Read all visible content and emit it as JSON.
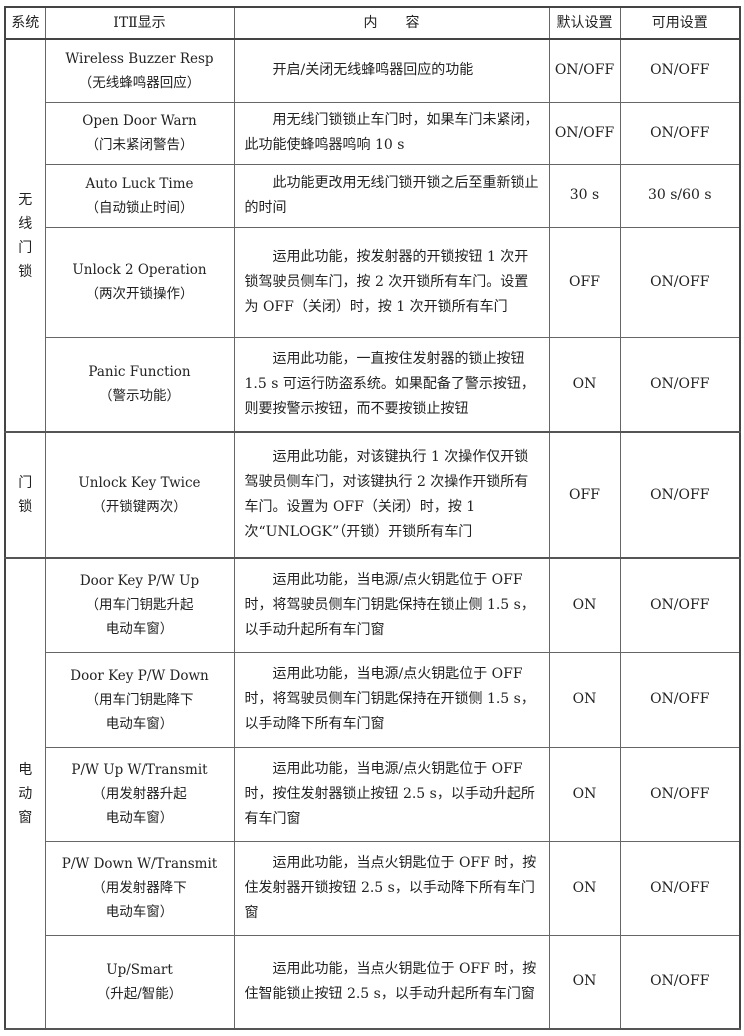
{
  "table": {
    "headers": [
      "系统",
      "ITⅡ显示",
      "内　　容",
      "默认设置",
      "可用设置"
    ],
    "groups": [
      {
        "system": "无\n线\n门\n锁",
        "rows": [
          {
            "name": "Wireless Buzzer Resp",
            "name_cn": "（无线蜂鸣器回应）",
            "content": "开启/关闭无线蜂鸣器回应的功能",
            "default": "ON/OFF",
            "available": "ON/OFF"
          },
          {
            "name": "Open Door Warn",
            "name_cn": "（门未紧闭警告）",
            "content": "用无线门锁锁止车门时，如果车门未紧闭，此功能使蜂鸣器鸣响 10 s",
            "default": "ON/OFF",
            "available": "ON/OFF"
          },
          {
            "name": "Auto Luck Time",
            "name_cn": "（自动锁止时间）",
            "content": "此功能更改用无线门锁开锁之后至重新锁止的时间",
            "default": "30 s",
            "available": "30 s/60 s"
          },
          {
            "name": "Unlock 2 Operation",
            "name_cn": "（两次开锁操作）",
            "content": "运用此功能，按发射器的开锁按钮 1 次开锁驾驶员侧车门，按 2 次开锁所有车门。设置为 OFF（关闭）时，按 1 次开锁所有车门",
            "default": "OFF",
            "available": "ON/OFF"
          },
          {
            "name": "Panic Function",
            "name_cn": "（警示功能）",
            "content": "运用此功能，一直按住发射器的锁止按钮 1.5 s 可运行防盗系统。如果配备了警示按钮，则要按警示按钮，而不要按锁止按钮",
            "default": "ON",
            "available": "ON/OFF"
          }
        ]
      },
      {
        "system": "门\n锁",
        "rows": [
          {
            "name": "Unlock Key Twice",
            "name_cn": "（开锁键两次）",
            "content": "运用此功能，对该键执行 1 次操作仅开锁驾驶员侧车门，对该键执行 2 次操作开锁所有车门。设置为 OFF（关闭）时，按 1 次“UNLOGK”（开锁）开锁所有车门",
            "default": "OFF",
            "available": "ON/OFF"
          }
        ]
      },
      {
        "system": "电\n动\n窗",
        "rows": [
          {
            "name": "Door Key P/W Up",
            "name_cn": "（用车门钥匙升起\n电动车窗）",
            "content": "运用此功能，当电源/点火钥匙位于 OFF 时，将驾驶员侧车门钥匙保持在锁止侧 1.5 s，以手动升起所有车门窗",
            "default": "ON",
            "available": "ON/OFF"
          },
          {
            "name": "Door Key P/W Down",
            "name_cn": "（用车门钥匙降下\n电动车窗）",
            "content": "运用此功能，当电源/点火钥匙位于 OFF 时，将驾驶员侧车门钥匙保持在开锁侧 1.5 s，以手动降下所有车门窗",
            "default": "ON",
            "available": "ON/OFF"
          },
          {
            "name": "P/W Up W/Transmit",
            "name_cn": "（用发射器升起\n电动车窗）",
            "content": "运用此功能，当电源/点火钥匙位于 OFF 时，按住发射器锁止按钮 2.5 s，以手动升起所有车门窗",
            "default": "ON",
            "available": "ON/OFF"
          },
          {
            "name": "P/W Down W/Transmit",
            "name_cn": "（用发射器降下\n电动车窗）",
            "content": "运用此功能，当点火钥匙位于 OFF 时，按住发射器开锁按钮 2.5 s，以手动降下所有车门窗",
            "default": "ON",
            "available": "ON/OFF"
          },
          {
            "name": "Up/Smart",
            "name_cn": "（升起/智能）",
            "content": "运用此功能，当点火钥匙位于 OFF 时，按住智能锁止按钮 2.5 s，以手动升起所有车门窗",
            "default": "ON",
            "available": "ON/OFF"
          }
        ]
      }
    ]
  }
}
